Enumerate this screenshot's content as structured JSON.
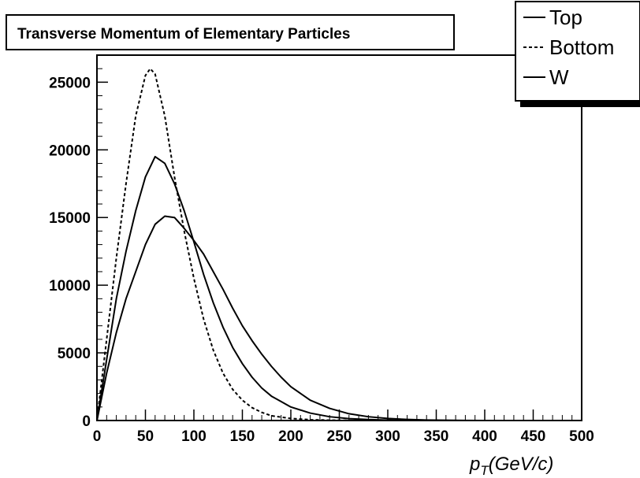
{
  "chart_data": {
    "type": "line",
    "title": "Transverse Momentum of Elementary Particles",
    "xlabel": "p_T(GeV/c)",
    "xlabel_parts": {
      "main": "p",
      "sub": "T",
      "rest": "(GeV/c)"
    },
    "ylabel": "",
    "xlim": [
      0,
      500
    ],
    "ylim": [
      0,
      27000
    ],
    "grid": false,
    "legend_position": "top-right",
    "x_ticks": [
      0,
      50,
      100,
      150,
      200,
      250,
      300,
      350,
      400,
      450,
      500
    ],
    "y_ticks": [
      0,
      5000,
      10000,
      15000,
      20000,
      25000
    ],
    "series": [
      {
        "name": "Top",
        "style": "solid",
        "x": [
          0,
          10,
          20,
          30,
          40,
          50,
          60,
          70,
          80,
          90,
          100,
          110,
          120,
          130,
          140,
          150,
          160,
          170,
          180,
          190,
          200,
          220,
          240,
          260,
          280,
          300,
          320,
          340,
          360,
          380,
          400
        ],
        "y": [
          0,
          3500,
          6500,
          9000,
          11000,
          13000,
          14500,
          15100,
          15000,
          14200,
          13300,
          12300,
          11000,
          9700,
          8300,
          7000,
          5900,
          4900,
          4000,
          3200,
          2500,
          1500,
          900,
          500,
          280,
          150,
          80,
          40,
          20,
          10,
          0
        ]
      },
      {
        "name": "Bottom",
        "style": "dashed",
        "x": [
          0,
          10,
          20,
          30,
          40,
          50,
          55,
          60,
          70,
          80,
          90,
          100,
          110,
          120,
          130,
          140,
          150,
          160,
          170,
          180,
          200,
          220,
          240,
          260,
          280,
          300
        ],
        "y": [
          0,
          6000,
          12000,
          17500,
          22500,
          25500,
          26000,
          25600,
          22500,
          18000,
          14000,
          10500,
          7500,
          5200,
          3500,
          2300,
          1500,
          950,
          600,
          350,
          150,
          60,
          25,
          10,
          5,
          0
        ]
      },
      {
        "name": "W",
        "style": "solid",
        "x": [
          0,
          10,
          20,
          30,
          40,
          50,
          60,
          70,
          80,
          90,
          100,
          110,
          120,
          130,
          140,
          150,
          160,
          170,
          180,
          200,
          220,
          240,
          260,
          280,
          300,
          320,
          340
        ],
        "y": [
          0,
          4500,
          9000,
          12500,
          15500,
          18000,
          19500,
          19000,
          17500,
          15500,
          13200,
          10800,
          8700,
          6900,
          5400,
          4200,
          3200,
          2400,
          1800,
          1000,
          550,
          280,
          140,
          70,
          30,
          10,
          0
        ]
      }
    ]
  }
}
